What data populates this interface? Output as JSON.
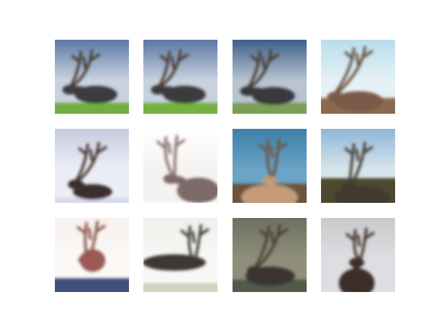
{
  "figure": {
    "background": "#ffffff",
    "grid": {
      "rows": 3,
      "columns": 4
    }
  },
  "images": [
    {
      "id": "r0c0",
      "subject": "reindeer",
      "sky": "#5b7aa8",
      "sky2": "#c9d3df",
      "ground": "#6fae3f",
      "animal": "#3b3a3f",
      "antler": "#4a3f33"
    },
    {
      "id": "r0c1",
      "subject": "reindeer",
      "sky": "#5a78a3",
      "sky2": "#c7d2de",
      "ground": "#74b240",
      "animal": "#3a3a3e",
      "antler": "#4b4035"
    },
    {
      "id": "r0c2",
      "subject": "reindeer",
      "sky": "#3f5f8a",
      "sky2": "#b8c4cf",
      "ground": "#7a9f55",
      "animal": "#38383c",
      "antler": "#4a4035"
    },
    {
      "id": "r0c3",
      "subject": "reindeer",
      "sky": "#b9dcec",
      "sky2": "#e6f1f6",
      "ground": "#8a6a4f",
      "animal": "#7c5a4a",
      "antler": "#6b5444"
    },
    {
      "id": "r1c0",
      "subject": "reindeer",
      "sky": "#c7cbe0",
      "sky2": "#eceef6",
      "ground": "#d9dbea",
      "animal": "#3d2f2d",
      "antler": "#4a3a33"
    },
    {
      "id": "r1c1",
      "subject": "reindeer",
      "sky": "#ffffff",
      "sky2": "#f4f2f0",
      "ground": "#ffffff",
      "animal": "#7d6a69",
      "antler": "#8b7771"
    },
    {
      "id": "r1c2",
      "subject": "reindeer",
      "sky": "#3f7fa8",
      "sky2": "#6aa4c6",
      "ground": "#6b5240",
      "animal": "#c49a78",
      "antler": "#6b5846"
    },
    {
      "id": "r1c3",
      "subject": "reindeer",
      "sky": "#8fb6d6",
      "sky2": "#d8e4ec",
      "ground": "#4e4a2e",
      "animal": "#3f3a2f",
      "antler": "#4a4034"
    },
    {
      "id": "r2c0",
      "subject": "reindeer",
      "sky": "#f7f1ee",
      "sky2": "#fbf8f6",
      "ground": "#3f4f7a",
      "animal": "#9b5a55",
      "antler": "#8a5a4f"
    },
    {
      "id": "r2c1",
      "subject": "reindeer",
      "sky": "#eef0ec",
      "sky2": "#f7f8f5",
      "ground": "#cfd3bf",
      "animal": "#3d3833",
      "antler": "#4a4238"
    },
    {
      "id": "r2c2",
      "subject": "reindeer",
      "sky": "#6f6f5f",
      "sky2": "#8f8f7c",
      "ground": "#4f5a48",
      "animal": "#3a3632",
      "antler": "#4b4238"
    },
    {
      "id": "r2c3",
      "subject": "reindeer",
      "sky": "#c9c9cc",
      "sky2": "#dedee2",
      "ground": "#b7b5b8",
      "animal": "#3b2f28",
      "antler": "#4a3a30"
    }
  ]
}
